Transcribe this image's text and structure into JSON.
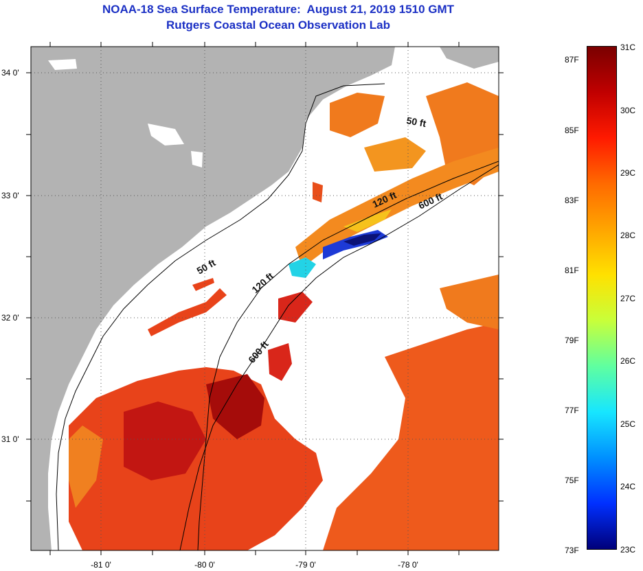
{
  "title": {
    "line1": "NOAA-18 Sea Surface Temperature:  August 21, 2019 1510 GMT",
    "line2": "Rutgers Coastal Ocean Observation Lab"
  },
  "map": {
    "lat_labels": [
      "34 0'",
      "33 0'",
      "32 0'",
      "31 0'"
    ],
    "lon_labels": [
      "-81 0'",
      "-80 0'",
      "-79 0'",
      "-78 0'"
    ],
    "contour_labels": [
      "50 ft",
      "120 ft",
      "600 ft",
      "50 ft",
      "120 ft",
      "600 ft"
    ],
    "colors": {
      "land": "#b3b3b3",
      "no_data": "#ffffff",
      "warm": "#e8431a",
      "hot": "#b5120f",
      "orange": "#f07a1d",
      "yellow": "#f6c21c",
      "cyan": "#23d3e6",
      "blue": "#1d3ad6",
      "navy": "#0b1276"
    }
  },
  "colorbar": {
    "fahrenheit": [
      "87F",
      "85F",
      "83F",
      "81F",
      "79F",
      "77F",
      "75F",
      "73F"
    ],
    "celsius": [
      "31C",
      "30C",
      "29C",
      "28C",
      "27C",
      "26C",
      "25C",
      "24C",
      "23C"
    ],
    "stops": [
      "#7a0000",
      "#c00000",
      "#ff1a00",
      "#ff6a00",
      "#ffa500",
      "#ffe100",
      "#c8ff3a",
      "#5fffa0",
      "#17e6ff",
      "#0090ff",
      "#0030ff",
      "#00007a"
    ]
  }
}
